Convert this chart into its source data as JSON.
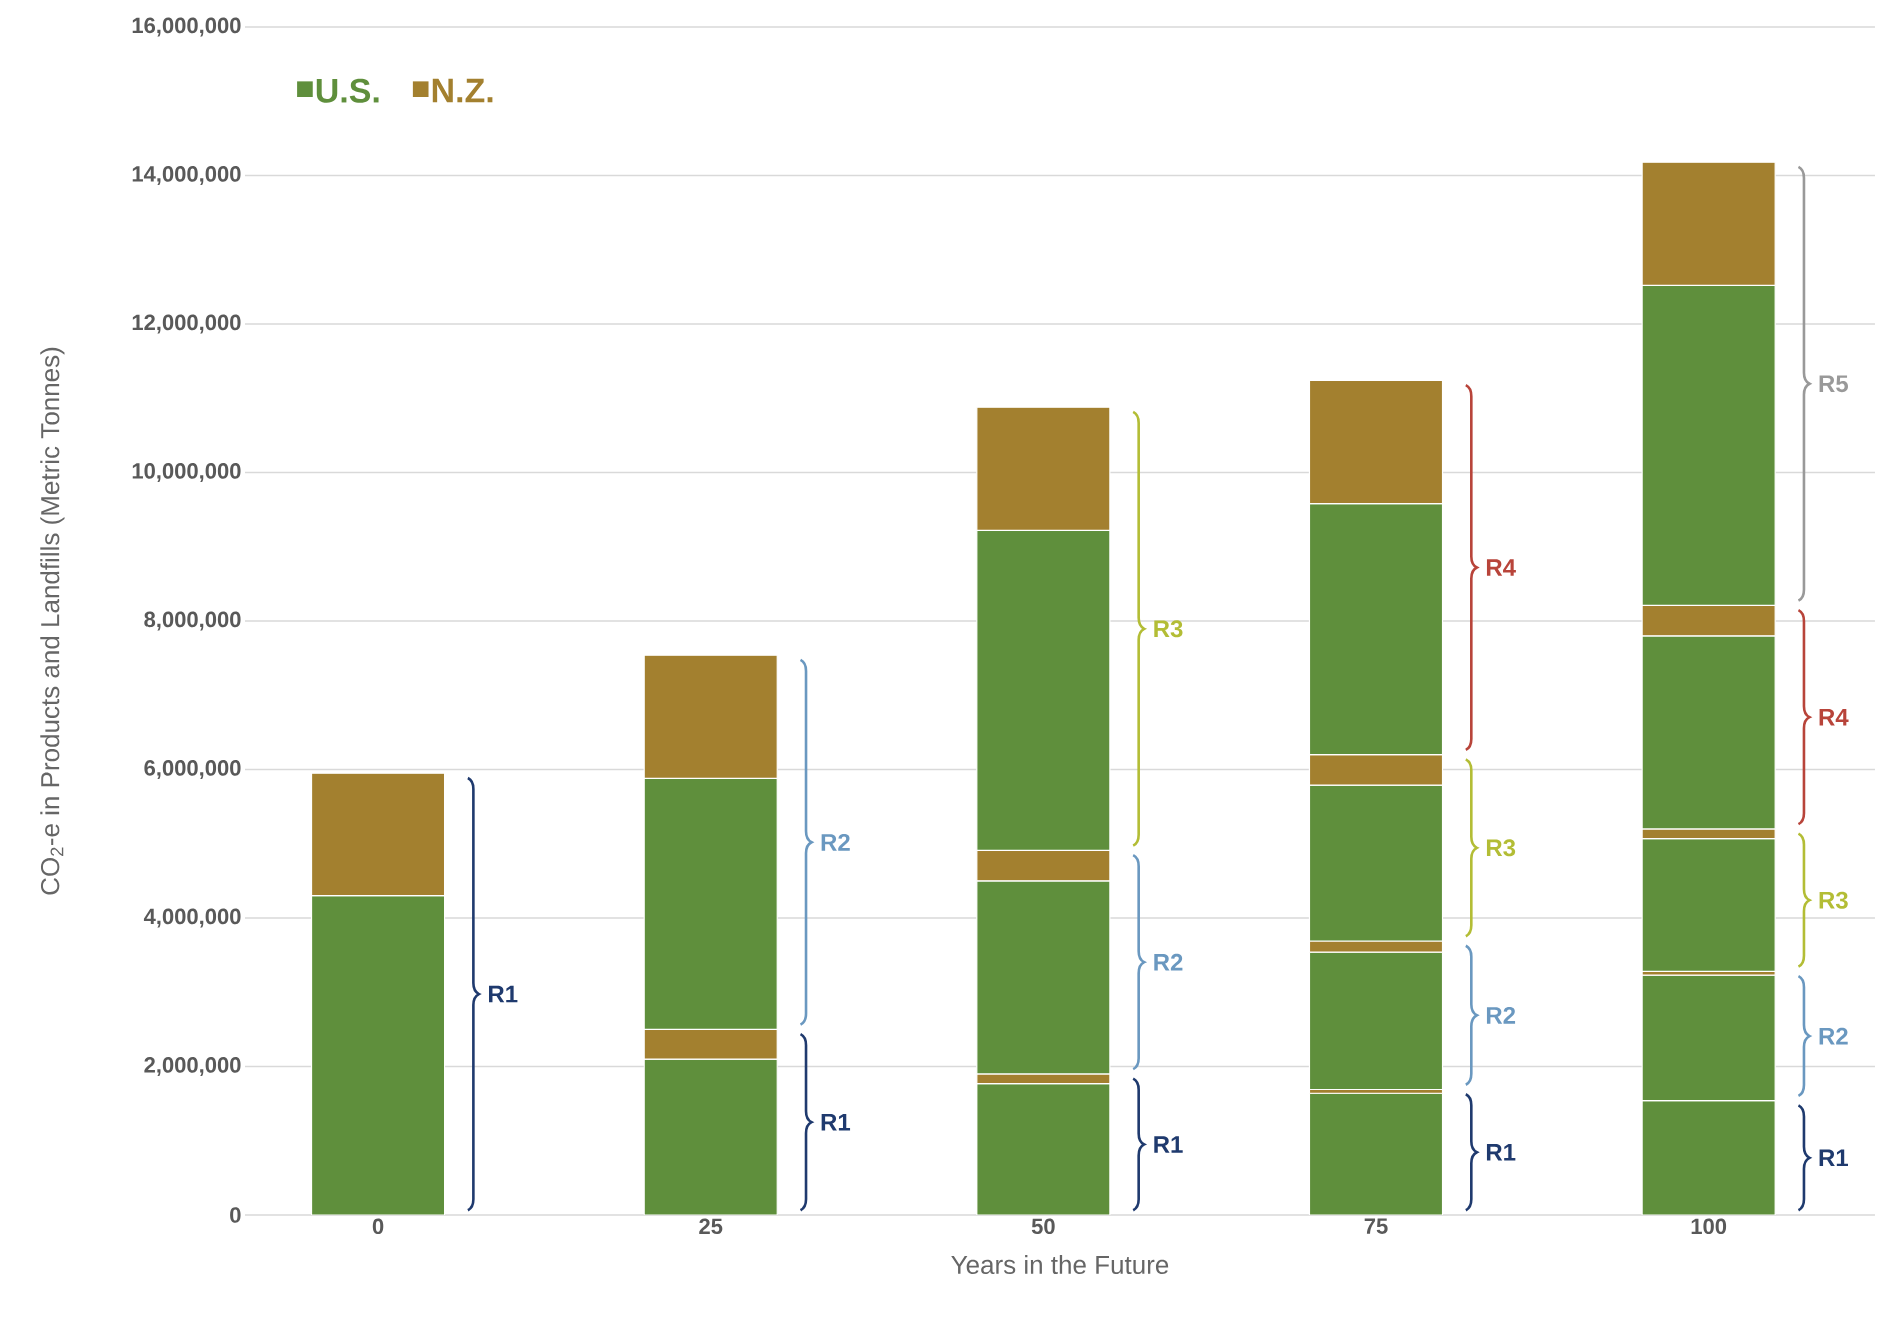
{
  "chart_data": {
    "type": "bar",
    "stacked": true,
    "xlabel": "Years in the Future",
    "ylabel": "CO$_{2}$-e in Products and Landfills (Metric Tonnes)",
    "categories": [
      "0",
      "25",
      "50",
      "75",
      "100"
    ],
    "series": [
      {
        "name": "U.S.",
        "color": "#5f8f3c",
        "values": [
          4300000,
          2100000,
          1770000,
          1640000,
          1540000
        ]
      },
      {
        "name": "N.Z.",
        "color": "#a3802f",
        "values": [
          1650000,
          400000,
          130000,
          50000,
          null
        ]
      },
      {
        "color": "#5f8f3c",
        "values": [
          null,
          3380000,
          2600000,
          1850000,
          1690000
        ]
      },
      {
        "color": "#a3802f",
        "values": [
          null,
          1660000,
          410000,
          150000,
          50000
        ]
      },
      {
        "color": "#5f8f3c",
        "values": [
          null,
          null,
          4310000,
          2100000,
          1790000
        ]
      },
      {
        "color": "#a3802f",
        "values": [
          null,
          null,
          1660000,
          410000,
          130000
        ]
      },
      {
        "color": "#5f8f3c",
        "values": [
          null,
          null,
          null,
          3380000,
          2600000
        ]
      },
      {
        "color": "#a3802f",
        "values": [
          null,
          null,
          null,
          1660000,
          410000
        ]
      },
      {
        "color": "#5f8f3c",
        "values": [
          null,
          null,
          null,
          null,
          4310000
        ]
      },
      {
        "color": "#a3802f",
        "values": [
          null,
          null,
          null,
          null,
          1660000
        ]
      }
    ],
    "ylim": [
      0,
      16000000
    ],
    "yticks": [
      0,
      {
        "value": 2000000,
        "label": "2,000,000"
      },
      {
        "value": 4000000,
        "label": "4,000,000"
      },
      {
        "value": 6000000,
        "label": "6,000,000"
      },
      {
        "value": 8000000,
        "label": "8,000,000"
      },
      {
        "value": 10000000,
        "label": "10,000,000"
      },
      {
        "value": 12000000,
        "label": "12,000,000"
      },
      {
        "value": 14000000,
        "label": "14,000,000"
      },
      {
        "value": 16000000,
        "label": "16,000,000"
      }
    ],
    "grid": "y",
    "legend": "top left",
    "annotations": [
      "R1",
      "R1",
      "R2",
      "R1",
      "R2",
      "R3",
      "R1",
      "R2",
      "R3",
      "R4",
      "R1",
      "R2",
      "R3",
      "R4",
      "R5"
    ]
  }
}
